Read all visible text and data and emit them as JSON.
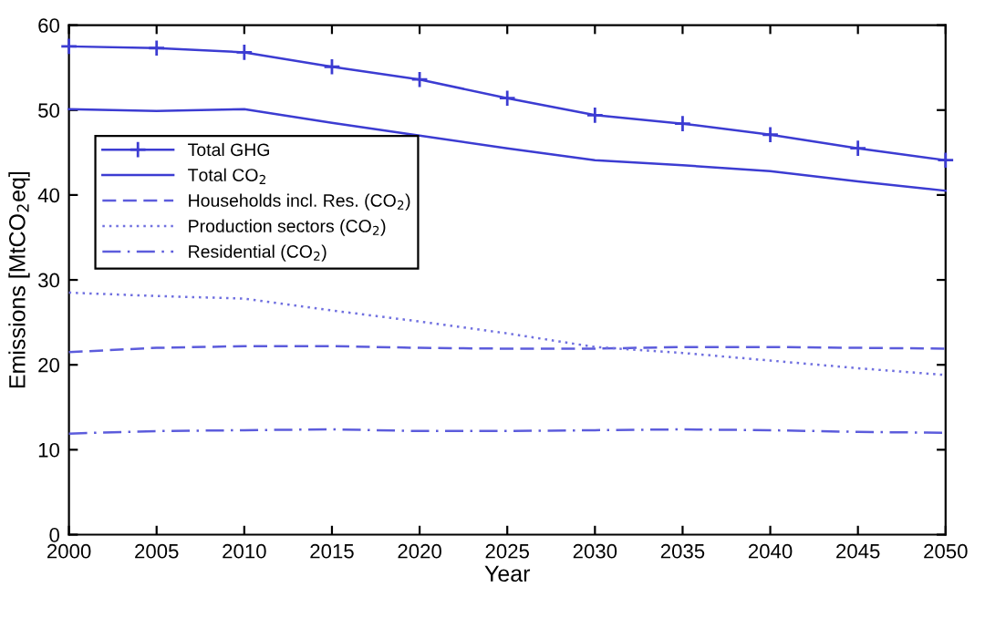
{
  "chart_data": {
    "type": "line",
    "xlabel": "Year",
    "ylabel": "Emissions [MtCO$_{2}$eq]",
    "x": [
      2000,
      2005,
      2010,
      2015,
      2020,
      2025,
      2030,
      2035,
      2040,
      2045,
      2050
    ],
    "series": [
      {
        "name": "Total GHG",
        "color": "#3c3cd2",
        "marker": "cross",
        "line_style": "solid",
        "values": [
          57.5,
          57.3,
          56.8,
          55.1,
          53.6,
          51.4,
          49.4,
          48.4,
          47.1,
          45.5,
          44.1
        ]
      },
      {
        "name": "Total CO$_{2}$",
        "color": "#3c3cd2",
        "line_style": "solid",
        "values": [
          50.1,
          49.9,
          50.1,
          48.5,
          47.0,
          45.5,
          44.1,
          43.5,
          42.8,
          41.6,
          40.5
        ]
      },
      {
        "name": "Households incl. Res. (CO$_{2}$)",
        "color": "#5c5cdc",
        "line_style": "dashed",
        "values": [
          21.5,
          22.0,
          22.2,
          22.2,
          22.0,
          21.9,
          21.9,
          22.1,
          22.1,
          22.0,
          21.9
        ]
      },
      {
        "name": "Production sectors (CO$_{2}$)",
        "color": "#7070e0",
        "line_style": "dotted",
        "values": [
          28.5,
          28.1,
          27.8,
          26.4,
          25.1,
          23.7,
          22.1,
          21.4,
          20.5,
          19.6,
          18.8
        ]
      },
      {
        "name": "Residential (CO$_{2}$)",
        "color": "#5c5cdc",
        "line_style": "dashdot",
        "values": [
          11.9,
          12.2,
          12.3,
          12.4,
          12.2,
          12.2,
          12.3,
          12.4,
          12.3,
          12.1,
          12.0
        ]
      }
    ],
    "xlim": [
      2000,
      2050
    ],
    "xticks": [
      2000,
      2005,
      2010,
      2015,
      2020,
      2025,
      2030,
      2035,
      2040,
      2045,
      2050
    ],
    "ylim": [
      0,
      60
    ],
    "yticks": [
      0,
      10,
      20,
      30,
      40,
      50,
      60
    ],
    "grid": false,
    "legend": "top left"
  }
}
